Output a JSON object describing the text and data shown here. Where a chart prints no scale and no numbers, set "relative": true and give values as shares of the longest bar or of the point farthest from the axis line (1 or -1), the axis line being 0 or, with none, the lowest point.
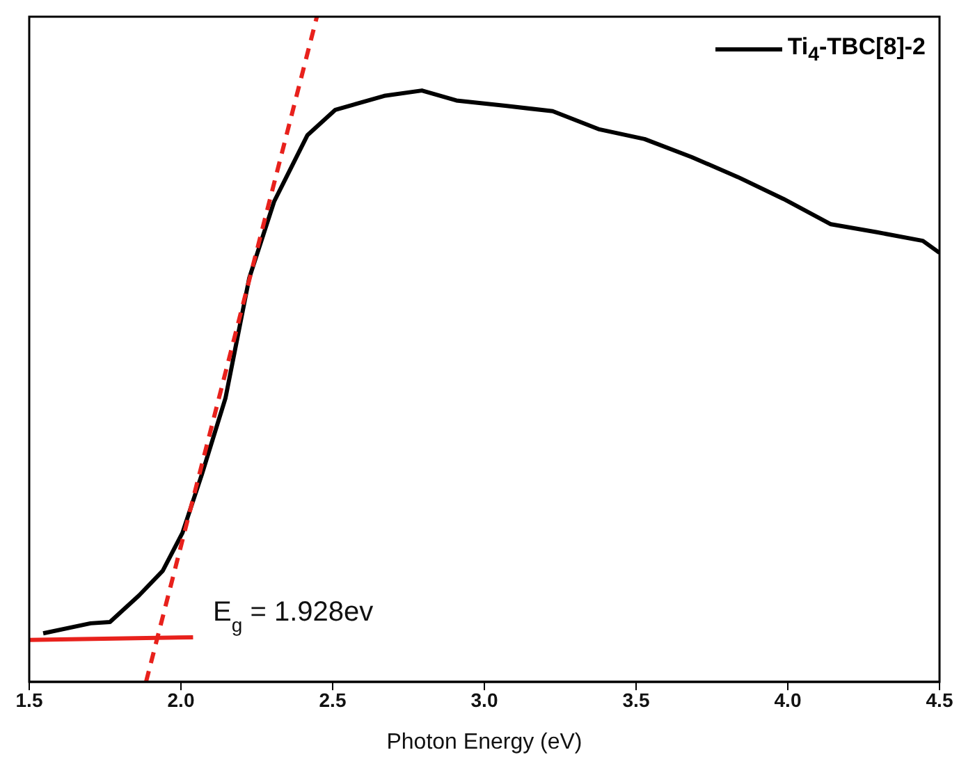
{
  "chart_data": {
    "type": "line",
    "xlabel": "Photon Energy (eV)",
    "relative": true,
    "xlim": [
      1.5,
      4.5
    ],
    "xticks": [
      1.5,
      {
        "value": 2,
        "label": "2.0"
      },
      2.5,
      {
        "value": 3,
        "label": "3.0"
      },
      3.5,
      {
        "value": 4,
        "label": "4.0"
      },
      4.5
    ],
    "legend": "top right",
    "annotations": [
      "E$_{g}$ = 1.928ev"
    ],
    "series": [
      {
        "name": "Ti$_{4}$-TBC[8]-2",
        "color": "#000000",
        "line_style": "solid",
        "x": [
          1.546,
          1.702,
          1.766,
          1.862,
          1.94,
          2.005,
          2.069,
          2.147,
          2.225,
          2.307,
          2.417,
          2.509,
          2.67,
          2.794,
          2.908,
          3.069,
          3.225,
          3.376,
          3.528,
          3.683,
          3.835,
          3.986,
          4.142,
          4.294,
          4.445,
          4.5
        ],
        "values": [
          0.073,
          0.088,
          0.09,
          0.13,
          0.167,
          0.224,
          0.312,
          0.427,
          0.607,
          0.722,
          0.822,
          0.86,
          0.881,
          0.889,
          0.874,
          0.866,
          0.858,
          0.831,
          0.816,
          0.789,
          0.759,
          0.726,
          0.688,
          0.676,
          0.663,
          0.645
        ]
      },
      {
        "type": "line",
        "color": "#e8211c",
        "line_style": "solid",
        "x": [
          1.5,
          2.04
        ],
        "values": [
          0.063,
          0.067
        ]
      },
      {
        "type": "line",
        "color": "#e8211c",
        "line_style": "dashed",
        "x": [
          1.885,
          2.448
        ],
        "values": [
          0,
          1
        ]
      }
    ]
  }
}
